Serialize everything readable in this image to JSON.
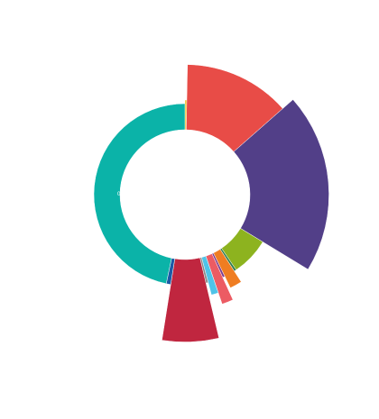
{
  "chart_data": {
    "type": "pie",
    "variant": "rose-donut",
    "start_angle_deg": 0,
    "direction": "clockwise",
    "slices": [
      {
        "value": 0.3,
        "relative_radius": 1.04,
        "color": "#f0b500",
        "label": ""
      },
      {
        "value": 13.2,
        "relative_radius": 1.43,
        "color": "#e84c47",
        "label": ""
      },
      {
        "value": 20.2,
        "relative_radius": 1.58,
        "color": "#523f88",
        "label": ""
      },
      {
        "value": 6.8,
        "relative_radius": 1.0,
        "color": "#8db31f",
        "label": ""
      },
      {
        "value": 0.4,
        "relative_radius": 1.0,
        "color": "#2e7d4f",
        "label": ""
      },
      {
        "value": 1.9,
        "relative_radius": 1.14,
        "color": "#ef7d22",
        "label": ""
      },
      {
        "value": 0.4,
        "relative_radius": 1.0,
        "color": "#7a3b8f",
        "label": ""
      },
      {
        "value": 1.6,
        "relative_radius": 1.27,
        "color": "#ec5b63",
        "label": ""
      },
      {
        "value": 1.1,
        "relative_radius": 1.14,
        "color": "#4fc3e8",
        "label": ""
      },
      {
        "value": 0.4,
        "relative_radius": 1.0,
        "color": "#8a8a8a",
        "label": ""
      },
      {
        "value": 6.2,
        "relative_radius": 1.62,
        "color": "#c0263f",
        "label": ""
      },
      {
        "value": 0.8,
        "relative_radius": 1.0,
        "color": "#1c5aa6",
        "label": ""
      },
      {
        "value": 46.7,
        "relative_radius": 1.0,
        "color": "#0bb3a8",
        "label": ""
      }
    ],
    "inner_label": "0",
    "legend": "none",
    "title": ""
  }
}
